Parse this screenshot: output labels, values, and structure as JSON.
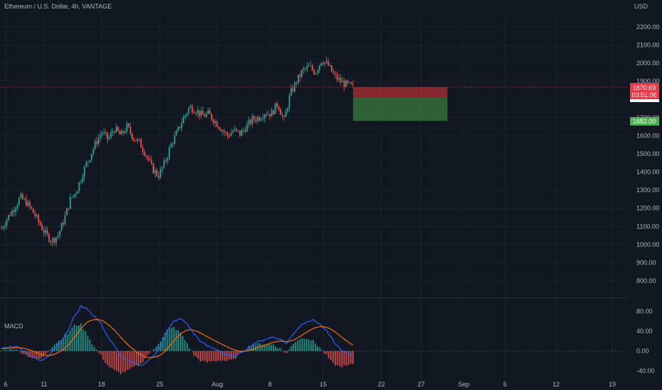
{
  "header": {
    "symbol_title": "Ethereum / U.S. Dollar, 4h, VANTAGE"
  },
  "price_axis": {
    "currency": "USD",
    "ticks": [
      "2200.00",
      "2100.00",
      "2000.00",
      "1900.00",
      "1700.00",
      "1600.00",
      "1500.00",
      "1400.00",
      "1300.00",
      "1200.00",
      "1100.00",
      "1000.00",
      "900.00",
      "800.00"
    ],
    "tick_values": [
      2200,
      2100,
      2000,
      1900,
      1700,
      1600,
      1500,
      1400,
      1300,
      1200,
      1100,
      1000,
      900,
      800
    ]
  },
  "last_price": {
    "value": "1870.69",
    "countdown": "03:51:06",
    "color": "#f23645"
  },
  "target_label": {
    "value": "1682.00",
    "color": "#4caf50"
  },
  "macd": {
    "title": "MACD",
    "ticks": [
      "80.00",
      "40.00",
      "0.00",
      "-40.00"
    ],
    "tick_values": [
      80,
      40,
      0,
      -40
    ]
  },
  "time_axis": {
    "labels": [
      "6",
      "11",
      "18",
      "25",
      "Aug",
      "8",
      "15",
      "22",
      "27",
      "Sep",
      "6",
      "12",
      "19"
    ]
  },
  "colors": {
    "up": "#26a69a",
    "down": "#ef5350",
    "macd_line": "#2962ff",
    "signal_line": "#ff6d00",
    "stop_zone": "#e53935",
    "profit_zone": "#43a047"
  },
  "chart_data": {
    "type": "line",
    "title": "Ethereum / U.S. Dollar, 4h, VANTAGE",
    "xlabel": "",
    "ylabel": "USD",
    "ylim": [
      760,
      2300
    ],
    "x_ticks": [
      "6",
      "11",
      "18",
      "25",
      "Aug",
      "8",
      "15",
      "22",
      "27",
      "Sep",
      "6",
      "12",
      "19"
    ],
    "series": [
      {
        "values": [
          1090,
          1150,
          1200,
          1260,
          1230,
          1180,
          1120,
          1060,
          1020,
          1050,
          1140,
          1250,
          1300,
          1400,
          1480,
          1560,
          1620,
          1580,
          1640,
          1600,
          1650,
          1590,
          1560,
          1500,
          1420,
          1380,
          1450,
          1550,
          1620,
          1700,
          1760,
          1740,
          1710,
          1720,
          1680,
          1640,
          1600,
          1630,
          1610,
          1650,
          1690,
          1700,
          1730,
          1720,
          1780,
          1680,
          1830,
          1900,
          1960,
          1980,
          1950,
          2020,
          1990,
          1930,
          1900,
          1880,
          1870
        ]
      }
    ],
    "trade_levels": {
      "last": 1870.69,
      "stop": 1875,
      "target": 1682
    },
    "macd_range": [
      -45,
      95
    ]
  }
}
